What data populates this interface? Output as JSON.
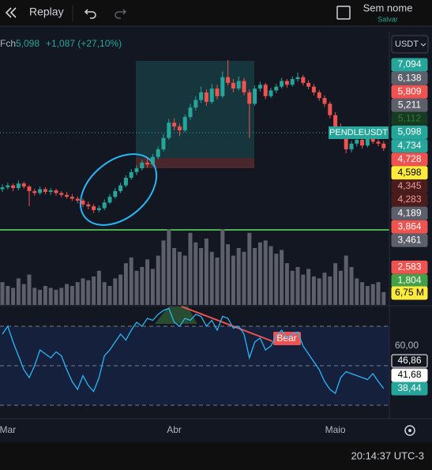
{
  "toolbar": {
    "replay": "Replay",
    "name": "Sem nome",
    "save": "Salvar"
  },
  "legend": {
    "label": "Fch",
    "close": "5,098",
    "change": "+1,087 (+27,10%)"
  },
  "currency": "USDT",
  "symbol_label": "PENDLEUSDT",
  "chart_data": {
    "type": "candlestick",
    "ylim": [
      2.6,
      7.8
    ],
    "up_color": "#26a69a",
    "down_color": "#ef5350",
    "categories": [
      null,
      "Mar",
      null,
      null,
      null,
      null,
      null,
      null,
      null,
      null,
      null,
      null,
      null,
      null,
      null,
      null,
      null,
      null,
      null,
      null,
      null,
      null,
      null,
      null,
      null,
      null,
      null,
      null,
      null,
      null,
      null,
      null,
      "Abr",
      null,
      null,
      null,
      null,
      null,
      null,
      null,
      null,
      null,
      null,
      null,
      null,
      null,
      null,
      null,
      null,
      null,
      null,
      null,
      null,
      null,
      null,
      null,
      null,
      null,
      null,
      null,
      null,
      null,
      "Maio",
      null,
      null,
      null,
      null,
      null,
      null,
      null,
      null,
      null
    ],
    "candles": [
      [
        3.65,
        3.78,
        3.58,
        3.7
      ],
      [
        3.7,
        3.82,
        3.64,
        3.75
      ],
      [
        3.75,
        3.8,
        3.6,
        3.68
      ],
      [
        3.68,
        3.88,
        3.62,
        3.8
      ],
      [
        3.8,
        3.85,
        3.66,
        3.72
      ],
      [
        3.72,
        3.76,
        3.2,
        3.6
      ],
      [
        3.6,
        3.66,
        3.48,
        3.55
      ],
      [
        3.55,
        3.72,
        3.5,
        3.65
      ],
      [
        3.65,
        3.7,
        3.52,
        3.58
      ],
      [
        3.58,
        3.68,
        3.5,
        3.62
      ],
      [
        3.62,
        3.66,
        3.48,
        3.55
      ],
      [
        3.55,
        3.6,
        3.44,
        3.5
      ],
      [
        3.5,
        3.58,
        3.4,
        3.45
      ],
      [
        3.45,
        3.52,
        3.34,
        3.4
      ],
      [
        3.4,
        3.46,
        3.28,
        3.35
      ],
      [
        3.35,
        3.4,
        3.18,
        3.25
      ],
      [
        3.25,
        3.32,
        3.12,
        3.2
      ],
      [
        3.2,
        3.26,
        3.02,
        3.1
      ],
      [
        3.1,
        3.22,
        3.04,
        3.15
      ],
      [
        3.15,
        3.38,
        3.1,
        3.3
      ],
      [
        3.3,
        3.52,
        3.26,
        3.45
      ],
      [
        3.45,
        3.68,
        3.4,
        3.6
      ],
      [
        3.6,
        3.82,
        3.55,
        3.75
      ],
      [
        3.75,
        4.02,
        3.7,
        3.95
      ],
      [
        3.95,
        4.18,
        3.9,
        4.1
      ],
      [
        4.1,
        4.28,
        4.02,
        4.2
      ],
      [
        4.2,
        4.42,
        4.14,
        4.35
      ],
      [
        4.35,
        4.45,
        4.22,
        4.3
      ],
      [
        4.3,
        4.58,
        4.26,
        4.5
      ],
      [
        4.5,
        4.78,
        4.44,
        4.7
      ],
      [
        4.7,
        5.1,
        4.64,
        5.0
      ],
      [
        5.0,
        5.5,
        4.95,
        5.4
      ],
      [
        5.4,
        5.52,
        5.2,
        5.3
      ],
      [
        5.3,
        5.38,
        5.05,
        5.2
      ],
      [
        5.2,
        5.62,
        5.15,
        5.55
      ],
      [
        5.55,
        5.9,
        5.48,
        5.8
      ],
      [
        5.8,
        6.1,
        5.72,
        6.0
      ],
      [
        6.0,
        6.35,
        5.92,
        6.2
      ],
      [
        6.2,
        6.28,
        5.85,
        5.95
      ],
      [
        5.95,
        6.42,
        5.9,
        6.3
      ],
      [
        6.3,
        6.4,
        6.02,
        6.1
      ],
      [
        6.1,
        6.75,
        6.05,
        6.6
      ],
      [
        6.6,
        7.05,
        6.38,
        6.45
      ],
      [
        6.45,
        6.55,
        6.2,
        6.3
      ],
      [
        6.3,
        6.62,
        6.25,
        6.5
      ],
      [
        6.5,
        6.58,
        6.12,
        6.2
      ],
      [
        6.2,
        6.28,
        5.0,
        5.9
      ],
      [
        5.9,
        6.38,
        5.85,
        6.3
      ],
      [
        6.3,
        6.48,
        6.22,
        6.4
      ],
      [
        6.4,
        6.45,
        6.02,
        6.1
      ],
      [
        6.1,
        6.32,
        6.05,
        6.25
      ],
      [
        6.25,
        6.42,
        6.18,
        6.35
      ],
      [
        6.35,
        6.58,
        6.3,
        6.5
      ],
      [
        6.5,
        6.55,
        6.32,
        6.4
      ],
      [
        6.4,
        6.62,
        6.35,
        6.55
      ],
      [
        6.55,
        6.72,
        6.48,
        6.6
      ],
      [
        6.6,
        6.66,
        6.38,
        6.45
      ],
      [
        6.45,
        6.52,
        6.28,
        6.35
      ],
      [
        6.35,
        6.42,
        6.12,
        6.2
      ],
      [
        6.2,
        6.26,
        5.98,
        6.05
      ],
      [
        6.05,
        6.12,
        5.82,
        5.9
      ],
      [
        5.9,
        5.96,
        5.52,
        5.6
      ],
      [
        5.6,
        5.68,
        5.22,
        5.3
      ],
      [
        5.3,
        5.38,
        4.96,
        5.05
      ],
      [
        5.05,
        5.12,
        4.6,
        4.7
      ],
      [
        4.7,
        4.92,
        4.62,
        4.85
      ],
      [
        4.85,
        5.02,
        4.78,
        4.95
      ],
      [
        4.95,
        5.0,
        4.72,
        4.8
      ],
      [
        4.8,
        5.08,
        4.75,
        5.0
      ],
      [
        5.0,
        5.05,
        4.84,
        4.9
      ],
      [
        4.9,
        4.96,
        4.78,
        4.85
      ],
      [
        4.85,
        4.92,
        4.66,
        4.73
      ]
    ],
    "volume": {
      "ylim": [
        0,
        40
      ],
      "color": "#5d606b",
      "values": [
        12,
        10,
        9,
        14,
        11,
        16,
        9,
        8,
        10,
        9,
        8,
        9,
        11,
        10,
        12,
        14,
        13,
        15,
        18,
        12,
        10,
        14,
        16,
        22,
        25,
        18,
        20,
        24,
        19,
        26,
        34,
        40,
        30,
        28,
        26,
        38,
        33,
        30,
        35,
        28,
        25,
        40,
        32,
        26,
        30,
        28,
        38,
        30,
        33,
        34,
        31,
        27,
        29,
        22,
        18,
        20,
        16,
        19,
        15,
        14,
        17,
        15,
        22,
        18,
        26,
        20,
        14,
        12,
        10,
        11,
        12,
        6.75
      ],
      "value_labels": {
        "71": "6,75 M"
      }
    },
    "rsi": {
      "ylim": [
        24,
        80
      ],
      "color": "#29b6f6",
      "yticks": [
        {
          "value": 60,
          "label": "60,00"
        }
      ],
      "values": [
        66,
        70,
        62,
        55,
        48,
        44,
        50,
        58,
        56,
        54,
        57,
        55,
        48,
        42,
        38,
        45,
        40,
        37,
        44,
        55,
        58,
        62,
        66,
        63,
        68,
        72,
        70,
        74,
        73,
        76,
        78,
        79,
        72,
        70,
        74,
        73,
        76,
        75,
        70,
        73,
        68,
        75,
        74,
        69,
        70,
        66,
        54,
        62,
        64,
        58,
        60,
        65,
        68,
        64,
        66,
        67,
        60,
        56,
        52,
        48,
        42,
        38,
        36,
        44,
        47,
        46,
        45,
        44,
        43,
        46,
        42,
        38.44
      ],
      "value_labels": {
        "71": "38,44"
      }
    },
    "rsi_labels": [
      {
        "label": "46,86",
        "bg": "#131722",
        "fg": "#ffffff",
        "border": "#ffffff"
      },
      {
        "label": "41,68",
        "bg": "#ffffff",
        "fg": "#000000",
        "border": "#ffffff"
      }
    ],
    "annotation": "Bear"
  },
  "price_labels": [
    {
      "label": "7,094",
      "bg": "#26a69a",
      "fg": "#ffffff"
    },
    {
      "label": "6,138",
      "bg": "#5d606b",
      "fg": "#ffffff"
    },
    {
      "label": "5,809",
      "bg": "#ef5350",
      "fg": "#ffffff"
    },
    {
      "label": "5,211",
      "bg": "#5d606b",
      "fg": "#ffffff"
    },
    {
      "label": "5,112",
      "bg": "#163a22",
      "fg": "#2e7d32"
    },
    {
      "label": "5,098",
      "bg": "#26a69a",
      "fg": "#ffffff"
    },
    {
      "label": "4,734",
      "bg": "#26a69a",
      "fg": "#ffffff"
    },
    {
      "label": "4,728",
      "bg": "#ef5350",
      "fg": "#ffffff"
    },
    {
      "label": "4,598",
      "bg": "#ffeb3b",
      "fg": "#000000"
    },
    {
      "label": "4,345",
      "bg": "#4a1c1c",
      "fg": "#ef9a9a"
    },
    {
      "label": "4,283",
      "bg": "#4a1c1c",
      "fg": "#ef9a9a"
    },
    {
      "label": "4,189",
      "bg": "#5d606b",
      "fg": "#ffffff"
    },
    {
      "label": "3,864",
      "bg": "#ef5350",
      "fg": "#ffffff"
    },
    {
      "label": "3,461",
      "bg": "#5d606b",
      "fg": "#ffffff"
    },
    {
      "label": "2,583",
      "bg": "#ef5350",
      "fg": "#ffffff"
    },
    {
      "label": "1,804",
      "bg": "#43a047",
      "fg": "#ffffff"
    }
  ],
  "status": {
    "time": "20:14:37 UTC-3"
  }
}
